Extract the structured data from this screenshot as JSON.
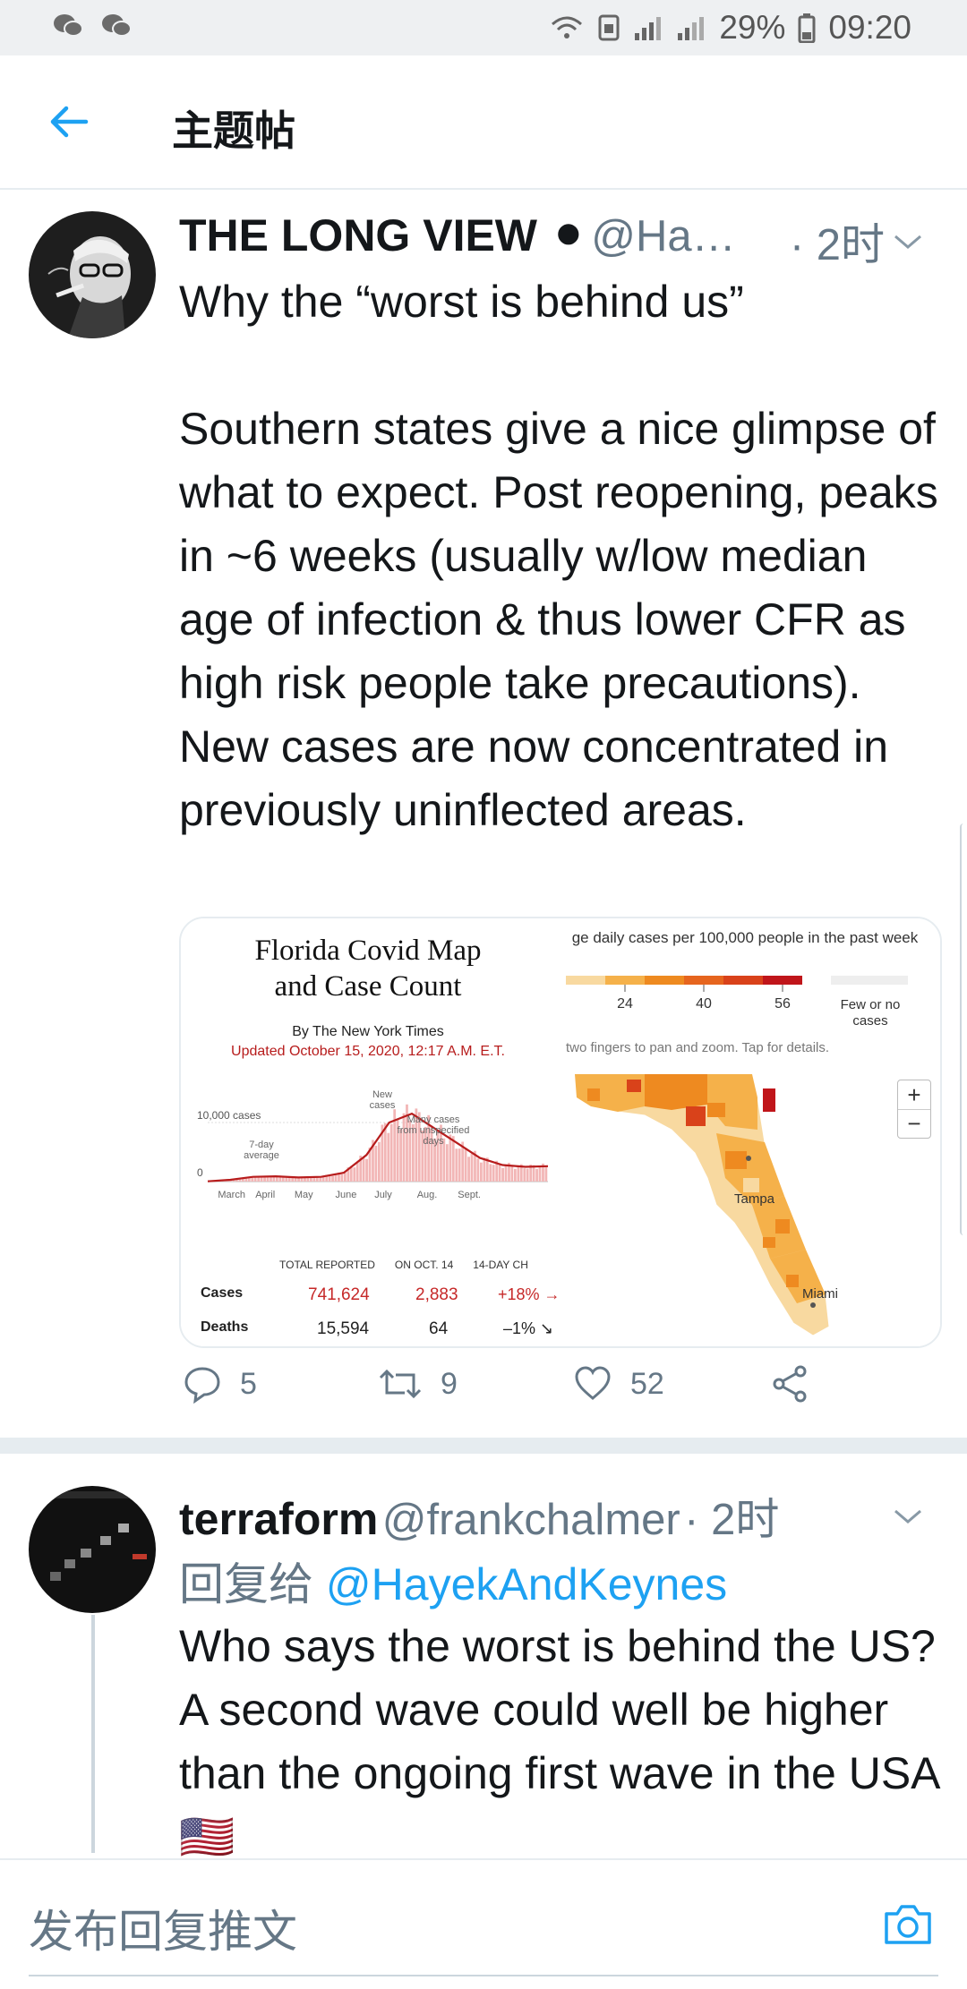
{
  "status_bar": {
    "battery_percent": "29%",
    "time": "09:20",
    "left_icons": [
      "wechat-icon",
      "wechat-icon"
    ],
    "right_icons": [
      "wifi-icon",
      "sim-icon",
      "signal-icon",
      "signal-roaming-icon",
      "battery-icon"
    ]
  },
  "header": {
    "title": "主题帖"
  },
  "main_tweet": {
    "name": "THE LONG VIEW ⚫",
    "handle": "@Ha…",
    "time": "· 2时",
    "text": "Why the “worst is behind us”\n\nSouthern states give a nice glimpse of what to expect. Post reopening, peaks in ~6 weeks (usually w/low median age of infection & thus lower CFR as high risk people take precautions). New cases are now concentrated in previously uninflected areas.",
    "media_left": {
      "title": "Florida Covid Map and Case Count",
      "byline": "By The New York Times",
      "updated": "Updated October 15, 2020, 12:17 A.M. E.T.",
      "table": {
        "headers": [
          "TOTAL REPORTED",
          "ON OCT. 14",
          "14-DAY CH"
        ],
        "rows": [
          {
            "label": "Cases",
            "values": [
              "741,624",
              "2,883",
              "+18% →"
            ]
          },
          {
            "label": "Deaths",
            "values": [
              "15,594",
              "64",
              "–1% ↘"
            ]
          }
        ]
      }
    },
    "media_right": {
      "legend_title": "ge daily cases per 100,000 people in the past week",
      "legend_ticks": [
        "24",
        "40",
        "56"
      ],
      "legend_few": "Few or no cases",
      "hint": "two fingers to pan and zoom. Tap for details.",
      "cities": [
        "Tampa",
        "Miami"
      ],
      "zoom_in": "+",
      "zoom_out": "−",
      "colors": {
        "light": "#f8d9a0",
        "mid": "#f5b14a",
        "orange": "#ee8a20",
        "dark": "#d9421a",
        "red": "#c0151a",
        "none": "#eeeeee"
      }
    },
    "actions": {
      "replies": "5",
      "retweets": "9",
      "likes": "52"
    }
  },
  "chart_data": {
    "type": "area",
    "title": "",
    "xlabel": "",
    "ylabel": "",
    "x_ticks": [
      "March",
      "April",
      "May",
      "June",
      "July",
      "Aug.",
      "Sept."
    ],
    "y_ticks": [
      "0",
      "10,000 cases"
    ],
    "ylim": [
      0,
      15000
    ],
    "annotations": [
      "7-day average",
      "New cases",
      "Many cases from unspecified days"
    ],
    "series": [
      {
        "name": "7-day average",
        "values": [
          50,
          300,
          800,
          900,
          700,
          800,
          1500,
          4500,
          10000,
          11500,
          9000,
          6500,
          4000,
          2800,
          2500,
          2600
        ]
      }
    ],
    "x": [
      "Mar 1",
      "Mar 15",
      "Apr 1",
      "Apr 15",
      "May 1",
      "May 15",
      "Jun 1",
      "Jun 15",
      "Jul 1",
      "Jul 15",
      "Aug 1",
      "Aug 15",
      "Sep 1",
      "Sep 15",
      "Oct 1",
      "Oct 14"
    ],
    "grid": false,
    "accent": "#c62828"
  },
  "reply_tweet": {
    "name": "terraform",
    "handle": "@frankchalmer",
    "time": "· 2时",
    "reply_prefix": "回复给",
    "reply_mention": "@HayekAndKeynes",
    "text": "Who says the worst is behind the US? A second wave could well be higher than the ongoing first wave in the USA 🇺🇸"
  },
  "compose": {
    "placeholder": "发布回复推文"
  },
  "theme": {
    "accent": "#1da1f2",
    "secondary_text": "#657786",
    "divider": "#e6ecf0"
  }
}
